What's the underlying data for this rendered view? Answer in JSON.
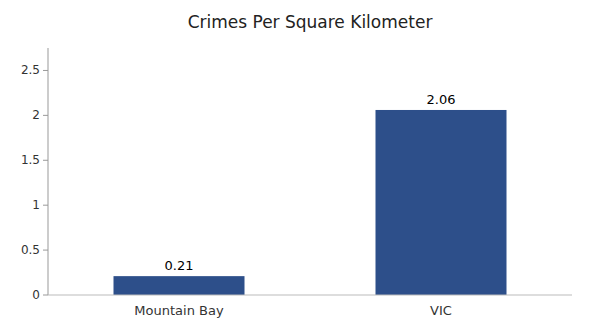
{
  "chart_data": {
    "type": "bar",
    "title": "Crimes Per Square Kilometer",
    "categories": [
      "Mountain Bay",
      "VIC"
    ],
    "values": [
      0.21,
      2.06
    ],
    "color": "#2d4f8a",
    "ylim": [
      0,
      2.75
    ],
    "yticks": [
      0,
      0.5,
      1,
      1.5,
      2,
      2.5
    ],
    "grid": false,
    "data_labels": true
  }
}
